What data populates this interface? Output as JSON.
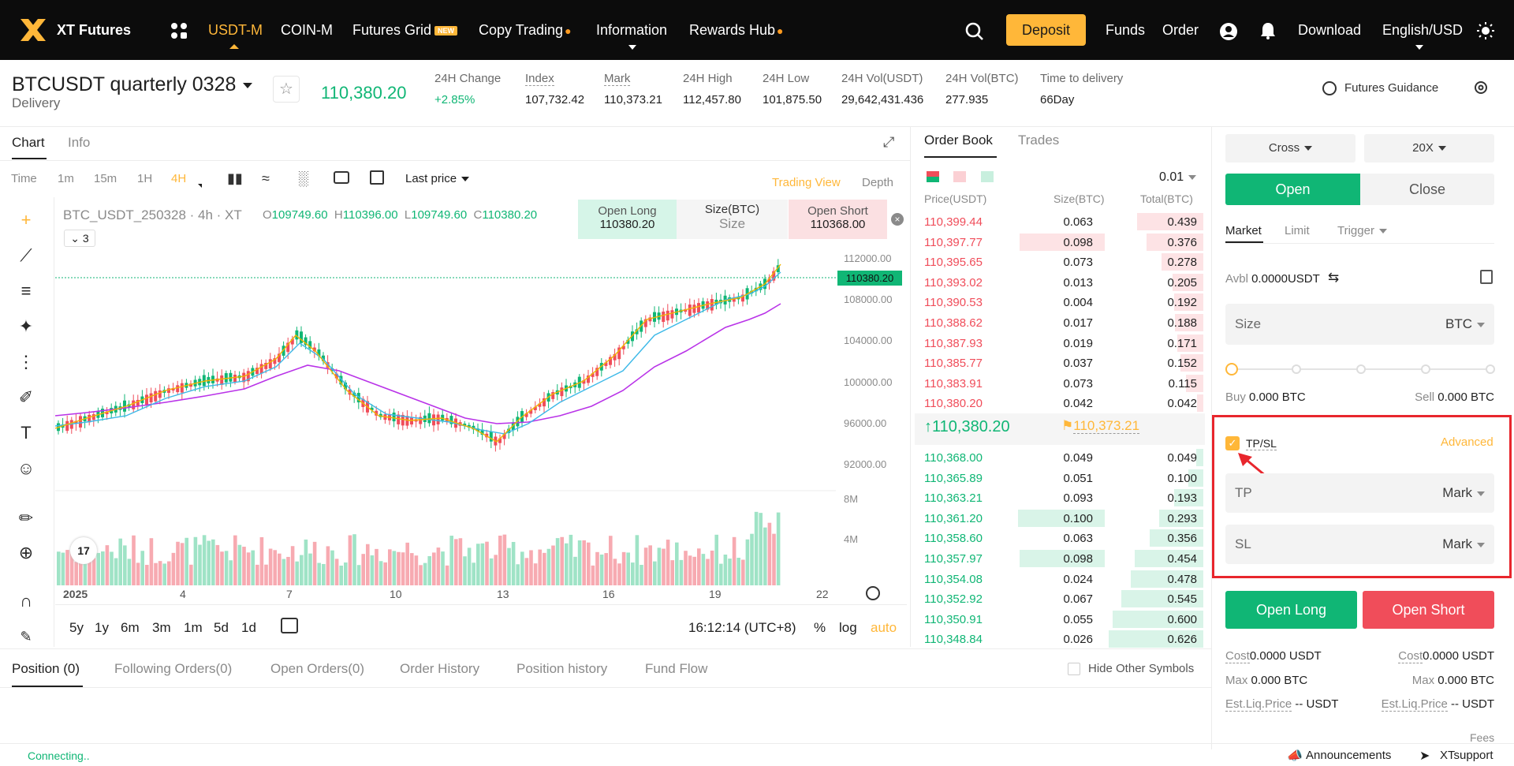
{
  "nav": {
    "logo": "XT Futures",
    "items": [
      "USDT-M",
      "COIN-M",
      "Futures Grid",
      "Copy Trading",
      "Information",
      "Rewards Hub"
    ],
    "new_badge": "NEW",
    "deposit": "Deposit",
    "funds": "Funds",
    "order": "Order",
    "download": "Download",
    "language": "English/USD",
    "accent": "#ffb739"
  },
  "ticker": {
    "symbol": "BTCUSDT quarterly 0328",
    "type": "Delivery",
    "last_price": "110,380.20",
    "stats": [
      {
        "label": "24H Change",
        "value": "+2.85%"
      },
      {
        "label": "Index",
        "value": "107,732.42"
      },
      {
        "label": "Mark",
        "value": "110,373.21"
      },
      {
        "label": "24H High",
        "value": "112,457.80"
      },
      {
        "label": "24H Low",
        "value": "101,875.50"
      },
      {
        "label": "24H Vol(USDT)",
        "value": "29,642,431.436"
      },
      {
        "label": "24H Vol(BTC)",
        "value": "277.935"
      },
      {
        "label": "Time to delivery",
        "value": "66Day"
      }
    ],
    "guidance": "Futures Guidance"
  },
  "chart": {
    "tabs": [
      "Chart",
      "Info"
    ],
    "intervals": [
      "Time",
      "1m",
      "15m",
      "1H",
      "4H"
    ],
    "active_interval": "4H",
    "price_type": "Last price",
    "view_modes": [
      "Trading View",
      "Depth"
    ],
    "title": "BTC_USDT_250328 · 4h · XT",
    "ohlc": {
      "o": "109749.60",
      "h": "110396.00",
      "l": "109749.60",
      "c": "110380.20"
    },
    "indicator_count": "3",
    "open_long_label": "Open Long",
    "open_long_price": "110380.20",
    "size_label": "Size(BTC)",
    "size_placeholder": "Size",
    "open_short_label": "Open Short",
    "open_short_price": "110368.00",
    "price_axis": [
      "112000.00",
      "108000.00",
      "104000.00",
      "100000.00",
      "96000.00",
      "92000.00"
    ],
    "current_price_tag": "110380.20",
    "volume_axis": [
      "8M",
      "4M"
    ],
    "date_axis": [
      "2025",
      "4",
      "7",
      "10",
      "13",
      "16",
      "19",
      "22"
    ],
    "ranges": [
      "5y",
      "1y",
      "6m",
      "3m",
      "1m",
      "5d",
      "1d"
    ],
    "clock": "16:12:14 (UTC+8)",
    "scale_opts": [
      "%",
      "log",
      "auto"
    ],
    "tv_logo": "17"
  },
  "orderbook": {
    "tabs": [
      "Order Book",
      "Trades"
    ],
    "precision": "0.01",
    "headers": [
      "Price(USDT)",
      "Size(BTC)",
      "Total(BTC)"
    ],
    "asks": [
      [
        "110,399.44",
        "0.063",
        "0.439"
      ],
      [
        "110,397.77",
        "0.098",
        "0.376"
      ],
      [
        "110,395.65",
        "0.073",
        "0.278"
      ],
      [
        "110,393.02",
        "0.013",
        "0.205"
      ],
      [
        "110,390.53",
        "0.004",
        "0.192"
      ],
      [
        "110,388.62",
        "0.017",
        "0.188"
      ],
      [
        "110,387.93",
        "0.019",
        "0.171"
      ],
      [
        "110,385.77",
        "0.037",
        "0.152"
      ],
      [
        "110,383.91",
        "0.073",
        "0.115"
      ],
      [
        "110,380.20",
        "0.042",
        "0.042"
      ]
    ],
    "last": "110,380.20",
    "mark": "110,373.21",
    "bids": [
      [
        "110,368.00",
        "0.049",
        "0.049"
      ],
      [
        "110,365.89",
        "0.051",
        "0.100"
      ],
      [
        "110,363.21",
        "0.093",
        "0.193"
      ],
      [
        "110,361.20",
        "0.100",
        "0.293"
      ],
      [
        "110,358.60",
        "0.063",
        "0.356"
      ],
      [
        "110,357.97",
        "0.098",
        "0.454"
      ],
      [
        "110,354.08",
        "0.024",
        "0.478"
      ],
      [
        "110,352.92",
        "0.067",
        "0.545"
      ],
      [
        "110,350.91",
        "0.055",
        "0.600"
      ],
      [
        "110,348.84",
        "0.026",
        "0.626"
      ]
    ]
  },
  "trade": {
    "margin_mode": "Cross",
    "leverage": "20X",
    "open": "Open",
    "close": "Close",
    "order_types": [
      "Market",
      "Limit",
      "Trigger"
    ],
    "avbl_label": "Avbl",
    "avbl_value": "0.0000USDT",
    "size_placeholder": "Size",
    "size_unit": "BTC",
    "buy_label": "Buy",
    "buy_value": "0.000 BTC",
    "sell_label": "Sell",
    "sell_value": "0.000 BTC",
    "tpsl_label": "TP/SL",
    "tpsl_checked": true,
    "advanced": "Advanced",
    "tp_label": "TP",
    "tp_type": "Mark",
    "sl_label": "SL",
    "sl_type": "Mark",
    "open_long": "Open Long",
    "open_short": "Open Short",
    "cost_label": "Cost",
    "cost_long": "0.0000 USDT",
    "cost_short": "0.0000 USDT",
    "max_label": "Max",
    "max_long": "0.000 BTC",
    "max_short": "0.000 BTC",
    "liq_label": "Est.Liq.Price",
    "liq_long": "-- USDT",
    "liq_short": "-- USDT",
    "fees": "Fees",
    "green": "#10b675",
    "red": "#f04d5a"
  },
  "bottom": {
    "tabs": [
      "Position (0)",
      "Following Orders(0)",
      "Open Orders(0)",
      "Order History",
      "Position history",
      "Fund Flow"
    ],
    "hide_other": "Hide Other Symbols"
  },
  "status": {
    "connecting": "Connecting..",
    "announcements": "Announcements",
    "support": "XTsupport"
  }
}
